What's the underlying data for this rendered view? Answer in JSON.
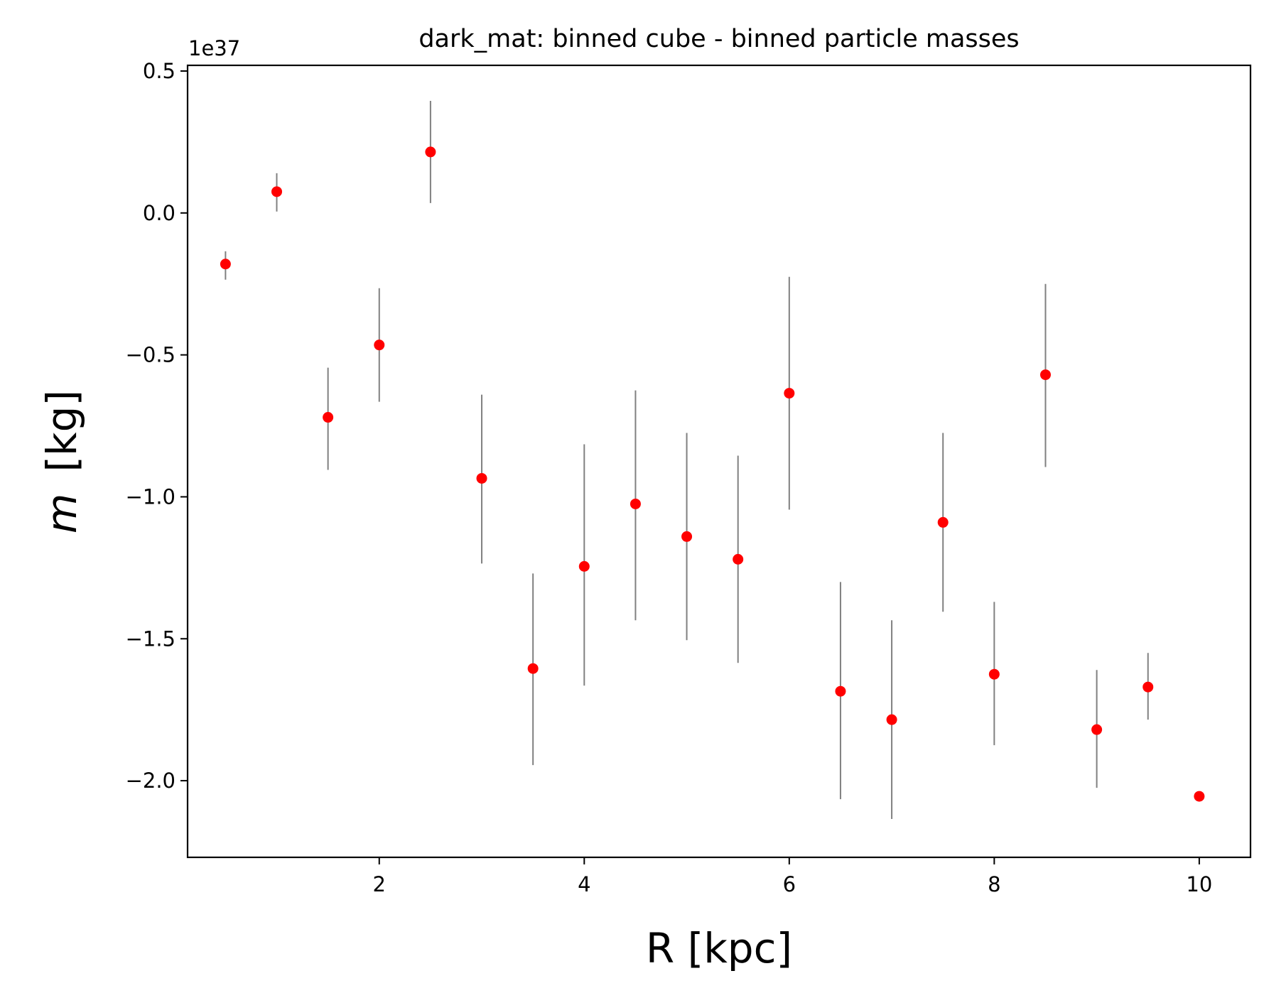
{
  "chart_data": {
    "type": "scatter",
    "title": "dark_mat: binned cube - binned particle masses",
    "xlabel": "R [kpc]",
    "ylabel_symbol": "m",
    "ylabel_unit": "[kg]",
    "y_offset_label": "1e37",
    "y_scale": 1e+37,
    "xlim": [
      0.13,
      10.5
    ],
    "ylim": [
      -2.27,
      0.52
    ],
    "x_ticks": [
      2,
      4,
      6,
      8,
      10
    ],
    "x_tick_labels": [
      "2",
      "4",
      "6",
      "8",
      "10"
    ],
    "y_ticks": [
      0.5,
      0.0,
      -0.5,
      -1.0,
      -1.5,
      -2.0
    ],
    "y_tick_labels": [
      "0.5",
      "0.0",
      "−0.5",
      "−1.0",
      "−1.5",
      "−2.0"
    ],
    "series": [
      {
        "name": "binned particle masses",
        "marker_color": "#ff0000",
        "errorbar_color": "#808080",
        "x": [
          0.5,
          1.0,
          1.5,
          2.0,
          2.5,
          3.0,
          3.5,
          4.0,
          4.5,
          5.0,
          5.5,
          6.0,
          6.5,
          7.0,
          7.5,
          8.0,
          8.5,
          9.0,
          9.5,
          10.0
        ],
        "y": [
          -0.18,
          0.075,
          -0.72,
          -0.465,
          0.215,
          -0.935,
          -1.605,
          -1.245,
          -1.025,
          -1.14,
          -1.22,
          -0.635,
          -1.685,
          -1.785,
          -1.09,
          -1.625,
          -0.57,
          -1.82,
          -1.67,
          -2.055
        ],
        "err_low": [
          -0.235,
          0.005,
          -0.905,
          -0.665,
          0.035,
          -1.235,
          -1.945,
          -1.665,
          -1.435,
          -1.505,
          -1.585,
          -1.045,
          -2.065,
          -2.135,
          -1.405,
          -1.875,
          -0.895,
          -2.025,
          -1.785,
          -2.055
        ],
        "err_high": [
          -0.135,
          0.14,
          -0.545,
          -0.265,
          0.395,
          -0.64,
          -1.27,
          -0.815,
          -0.625,
          -0.775,
          -0.855,
          -0.225,
          -1.3,
          -1.435,
          -0.775,
          -1.37,
          -0.25,
          -1.61,
          -1.55,
          -2.055
        ]
      }
    ]
  }
}
